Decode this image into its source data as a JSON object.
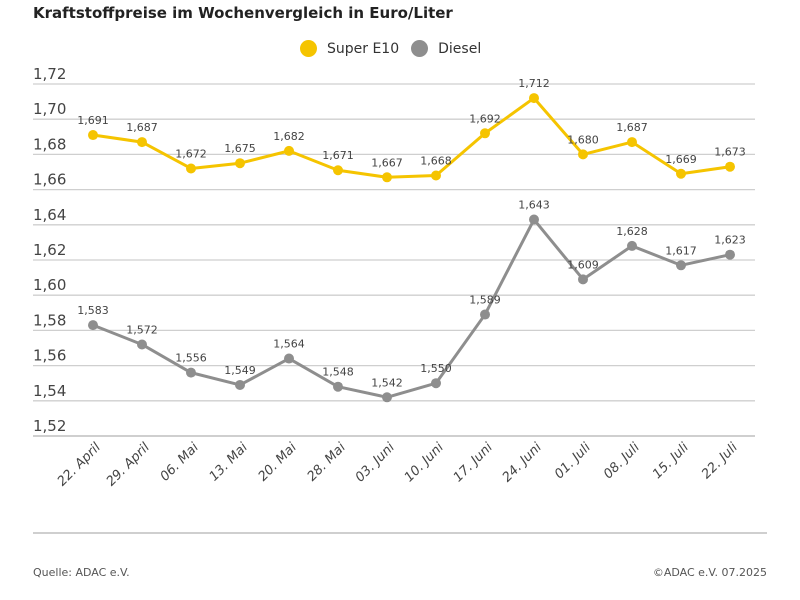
{
  "chart_data": {
    "type": "line",
    "title": "Kraftstoffpreise im Wochenvergleich in Euro/Liter",
    "categories": [
      "22. April",
      "29. April",
      "06. Mai",
      "13. Mai",
      "20. Mai",
      "28. Mai",
      "03. Juni",
      "10. Juni",
      "17. Juni",
      "24. Juni",
      "01. Juli",
      "08. Juli",
      "15. Juli",
      "22. Juli"
    ],
    "series": [
      {
        "name": "Super E10",
        "color": "#f5c400",
        "values": [
          1.691,
          1.687,
          1.672,
          1.675,
          1.682,
          1.671,
          1.667,
          1.668,
          1.692,
          1.712,
          1.68,
          1.687,
          1.669,
          1.673
        ]
      },
      {
        "name": "Diesel",
        "color": "#8e8e8e",
        "values": [
          1.583,
          1.572,
          1.556,
          1.549,
          1.564,
          1.548,
          1.542,
          1.55,
          1.589,
          1.643,
          1.609,
          1.628,
          1.617,
          1.623
        ]
      }
    ],
    "yticks": [
      "1,72",
      "1,70",
      "1,68",
      "1,66",
      "1,64",
      "1,62",
      "1,60",
      "1,58",
      "1,56",
      "1,54",
      "1,52"
    ],
    "ylim": [
      1.52,
      1.72
    ],
    "grid": true,
    "legend": "top-center",
    "xlabel": "",
    "ylabel": ""
  },
  "footer": {
    "source": "Quelle: ADAC e.V.",
    "copyright": "©ADAC e.V. 07.2025"
  }
}
